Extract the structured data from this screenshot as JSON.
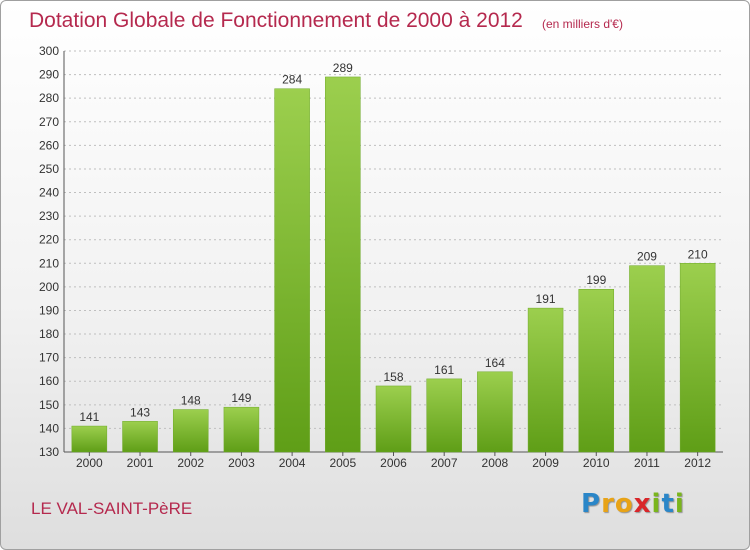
{
  "header": {
    "title": "Dotation Globale de Fonctionnement de 2000 à 2012",
    "subtitle": "(en milliers d'€)"
  },
  "footer": {
    "commune": "LE VAL-SAINT-PèRE",
    "logo_letters": [
      {
        "char": "P",
        "color": "#2a86c8"
      },
      {
        "char": "r",
        "color": "#e8a317"
      },
      {
        "char": "o",
        "color": "#e8a317"
      },
      {
        "char": "x",
        "color": "#d9262a"
      },
      {
        "char": "i",
        "color": "#7ab51d"
      },
      {
        "char": "t",
        "color": "#2a86c8"
      },
      {
        "char": "i",
        "color": "#7ab51d"
      }
    ]
  },
  "colors": {
    "bar_light": "#9ccf4e",
    "bar_dark": "#5f9e17",
    "grid": "#bfbfbf",
    "title": "#b5294e"
  },
  "chart_data": {
    "type": "bar",
    "title": "Dotation Globale de Fonctionnement de 2000 à 2012",
    "subtitle": "(en milliers d'€)",
    "categories": [
      "2000",
      "2001",
      "2002",
      "2003",
      "2004",
      "2005",
      "2006",
      "2007",
      "2008",
      "2009",
      "2010",
      "2011",
      "2012"
    ],
    "values": [
      141,
      143,
      148,
      149,
      284,
      289,
      158,
      161,
      164,
      191,
      199,
      209,
      210
    ],
    "ylim": [
      130,
      300
    ],
    "yticks": [
      130,
      140,
      150,
      160,
      170,
      180,
      190,
      200,
      210,
      220,
      230,
      240,
      250,
      260,
      270,
      280,
      290,
      300
    ],
    "grid": "horizontal dashed",
    "legend": "none"
  }
}
